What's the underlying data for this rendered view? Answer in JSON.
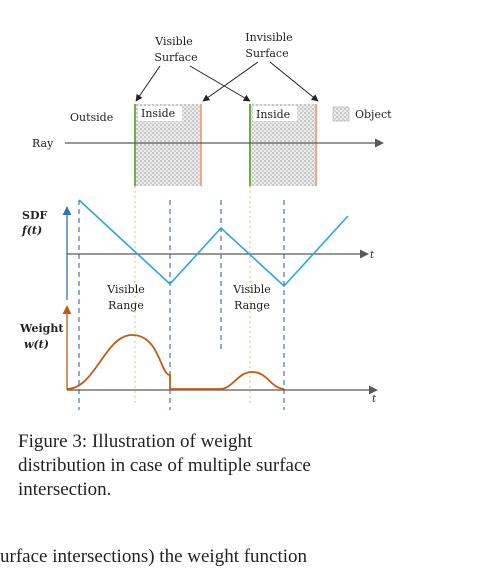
{
  "figure": {
    "labels": {
      "visible_surface_1": "Visible",
      "visible_surface_2": "Surface",
      "invisible_surface_1": "Invisible",
      "invisible_surface_2": "Surface",
      "outside": "Outside",
      "inside_left": "Inside",
      "inside_right": "Inside",
      "object": "Object",
      "ray": "Ray",
      "sdf": "SDF",
      "sdf_fn": "f(t)",
      "t_sdf": "t",
      "visible_range_a1": "Visible",
      "visible_range_a2": "Range",
      "visible_range_b1": "Visible",
      "visible_range_b2": "Range",
      "weight": "Weight",
      "weight_fn": "w(t)",
      "t_weight": "t"
    },
    "colors": {
      "sdf_curve": "#29a9d8",
      "weight_curve": "#c65a11",
      "entry_edge": "#70ad47",
      "exit_edge": "#f4a582",
      "ray_axis": "#595959",
      "dashed_guides": "#2f5597",
      "dotted_guides": "#c8c96a"
    }
  },
  "caption": {
    "line1": "Figure 3: Illustration of weight",
    "line2": "distribution in case of multiple surface",
    "line3": "intersection."
  },
  "body_text": "urface intersections) the weight function"
}
